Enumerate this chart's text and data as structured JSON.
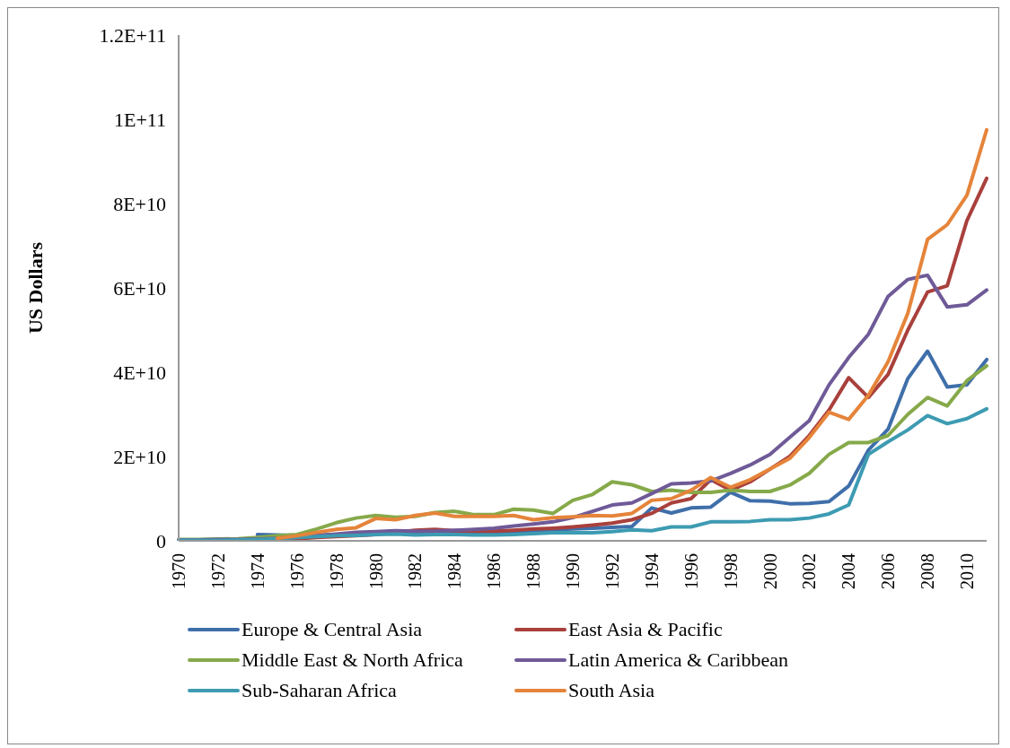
{
  "chart_data": {
    "type": "line",
    "ylabel": "US Dollars",
    "categories": [
      "1970",
      null,
      "1972",
      null,
      "1974",
      null,
      "1976",
      null,
      "1978",
      null,
      "1980",
      null,
      "1982",
      null,
      "1984",
      null,
      "1986",
      null,
      "1988",
      null,
      "1990",
      null,
      "1992",
      null,
      "1994",
      null,
      "1996",
      null,
      "1998",
      null,
      "2000",
      null,
      "2002",
      null,
      "2004",
      null,
      "2006",
      null,
      "2008",
      null,
      "2010",
      null
    ],
    "ylim": [
      0,
      120000000000
    ],
    "yticks": [
      0,
      {
        "value": 20000000000,
        "label": "2E+10"
      },
      {
        "value": 40000000000,
        "label": "4E+10"
      },
      {
        "value": 60000000000,
        "label": "6E+10"
      },
      {
        "value": 80000000000,
        "label": "8E+10"
      },
      {
        "value": 100000000000,
        "label": "1E+11"
      },
      {
        "value": 120000000000,
        "label": "1.2E+11"
      }
    ],
    "grid": false,
    "legend": "bottom",
    "marker": "none",
    "line_style": "solid",
    "series": [
      {
        "name": "Europe & Central Asia",
        "color": "#3f6faa",
        "values": [
          null,
          null,
          null,
          null,
          1500000000.0,
          1400000000.0,
          1200000000.0,
          1300000000.0,
          1500000000.0,
          1800000000.0,
          2000000000.0,
          2300000000.0,
          2000000000.0,
          2000000000.0,
          2000000000.0,
          2000000000.0,
          2000000000.0,
          2200000000.0,
          2400000000.0,
          2600000000.0,
          2800000000.0,
          3000000000.0,
          3200000000.0,
          3400000000.0,
          7800000000.0,
          6600000000.0,
          7800000000.0,
          8000000000.0,
          11500000000.0,
          9500000000.0,
          9400000000.0,
          8800000000.0,
          8900000000.0,
          9300000000.0,
          13000000000.0,
          21500000000.0,
          26500000000.0,
          38500000000.0,
          45000000000.0,
          36500000000.0,
          37000000000.0,
          43000000000.0
        ]
      },
      {
        "name": "East Asia & Pacific",
        "color": "#a9403c",
        "values": [
          null,
          null,
          null,
          null,
          300000000.0,
          400000000.0,
          500000000.0,
          800000000.0,
          1000000000.0,
          1200000000.0,
          1500000000.0,
          2000000000.0,
          2500000000.0,
          2700000000.0,
          2400000000.0,
          2300000000.0,
          2300000000.0,
          2500000000.0,
          2800000000.0,
          3000000000.0,
          3300000000.0,
          3700000000.0,
          4200000000.0,
          5000000000.0,
          6500000000.0,
          9000000000.0,
          10000000000.0,
          14500000000.0,
          12000000000.0,
          14000000000.0,
          17000000000.0,
          20000000000.0,
          25000000000.0,
          31000000000.0,
          38700000000.0,
          34000000000.0,
          39500000000.0,
          50000000000.0,
          59000000000.0,
          60500000000.0,
          76000000000.0,
          86000000000.0
        ]
      },
      {
        "name": "Middle East & North Africa",
        "color": "#86a94a",
        "values": [
          300000000.0,
          300000000.0,
          400000000.0,
          500000000.0,
          800000000.0,
          1200000000.0,
          1500000000.0,
          2800000000.0,
          4300000000.0,
          5400000000.0,
          6000000000.0,
          5600000000.0,
          5800000000.0,
          6700000000.0,
          7000000000.0,
          6200000000.0,
          6200000000.0,
          7500000000.0,
          7300000000.0,
          6500000000.0,
          9600000000.0,
          11000000000.0,
          14000000000.0,
          13300000000.0,
          11700000000.0,
          12000000000.0,
          11500000000.0,
          11500000000.0,
          12000000000.0,
          11700000000.0,
          11700000000.0,
          13200000000.0,
          16000000000.0,
          20500000000.0,
          23300000000.0,
          23300000000.0,
          25000000000.0,
          30000000000.0,
          34000000000.0,
          32000000000.0,
          38000000000.0,
          41500000000.0
        ]
      },
      {
        "name": "Latin America & Caribbean",
        "color": "#6f5a98",
        "values": [
          200000000.0,
          200000000.0,
          300000000.0,
          300000000.0,
          400000000.0,
          600000000.0,
          1000000000.0,
          1300000000.0,
          1600000000.0,
          2000000000.0,
          2200000000.0,
          2400000000.0,
          2300000000.0,
          2300000000.0,
          2500000000.0,
          2700000000.0,
          3000000000.0,
          3500000000.0,
          4000000000.0,
          4500000000.0,
          5500000000.0,
          7000000000.0,
          8500000000.0,
          9000000000.0,
          11200000000.0,
          13500000000.0,
          13700000000.0,
          14200000000.0,
          16000000000.0,
          18000000000.0,
          20500000000.0,
          24500000000.0,
          28500000000.0,
          37000000000.0,
          43500000000.0,
          49000000000.0,
          58000000000.0,
          62000000000.0,
          63000000000.0,
          55500000000.0,
          56000000000.0,
          59500000000.0
        ]
      },
      {
        "name": "Sub-Saharan Africa",
        "color": "#3d9bb2",
        "values": [
          100000000.0,
          100000000.0,
          100000000.0,
          200000000.0,
          300000000.0,
          500000000.0,
          800000000.0,
          1000000000.0,
          1200000000.0,
          1300000000.0,
          1500000000.0,
          1600000000.0,
          1400000000.0,
          1500000000.0,
          1500000000.0,
          1400000000.0,
          1400000000.0,
          1500000000.0,
          1700000000.0,
          1900000000.0,
          1900000000.0,
          1900000000.0,
          2200000000.0,
          2600000000.0,
          2400000000.0,
          3300000000.0,
          3300000000.0,
          4500000000.0,
          4500000000.0,
          4600000000.0,
          5000000000.0,
          5000000000.0,
          5400000000.0,
          6400000000.0,
          8500000000.0,
          20500000000.0,
          23500000000.0,
          26300000000.0,
          29700000000.0,
          27800000000.0,
          29000000000.0,
          31300000000.0
        ]
      },
      {
        "name": "South Asia",
        "color": "#e5843a",
        "values": [
          null,
          null,
          null,
          null,
          null,
          600000000.0,
          1200000000.0,
          2000000000.0,
          2700000000.0,
          3100000000.0,
          5300000000.0,
          5000000000.0,
          6000000000.0,
          6600000000.0,
          5800000000.0,
          5800000000.0,
          5800000000.0,
          6000000000.0,
          5000000000.0,
          5500000000.0,
          5700000000.0,
          6000000000.0,
          5900000000.0,
          6500000000.0,
          9600000000.0,
          10000000000.0,
          12000000000.0,
          15000000000.0,
          12700000000.0,
          14500000000.0,
          17000000000.0,
          19500000000.0,
          24500000000.0,
          30500000000.0,
          28800000000.0,
          34500000000.0,
          42500000000.0,
          54000000000.0,
          71500000000.0,
          75000000000.0,
          82000000000.0,
          97500000000.0
        ]
      }
    ]
  }
}
